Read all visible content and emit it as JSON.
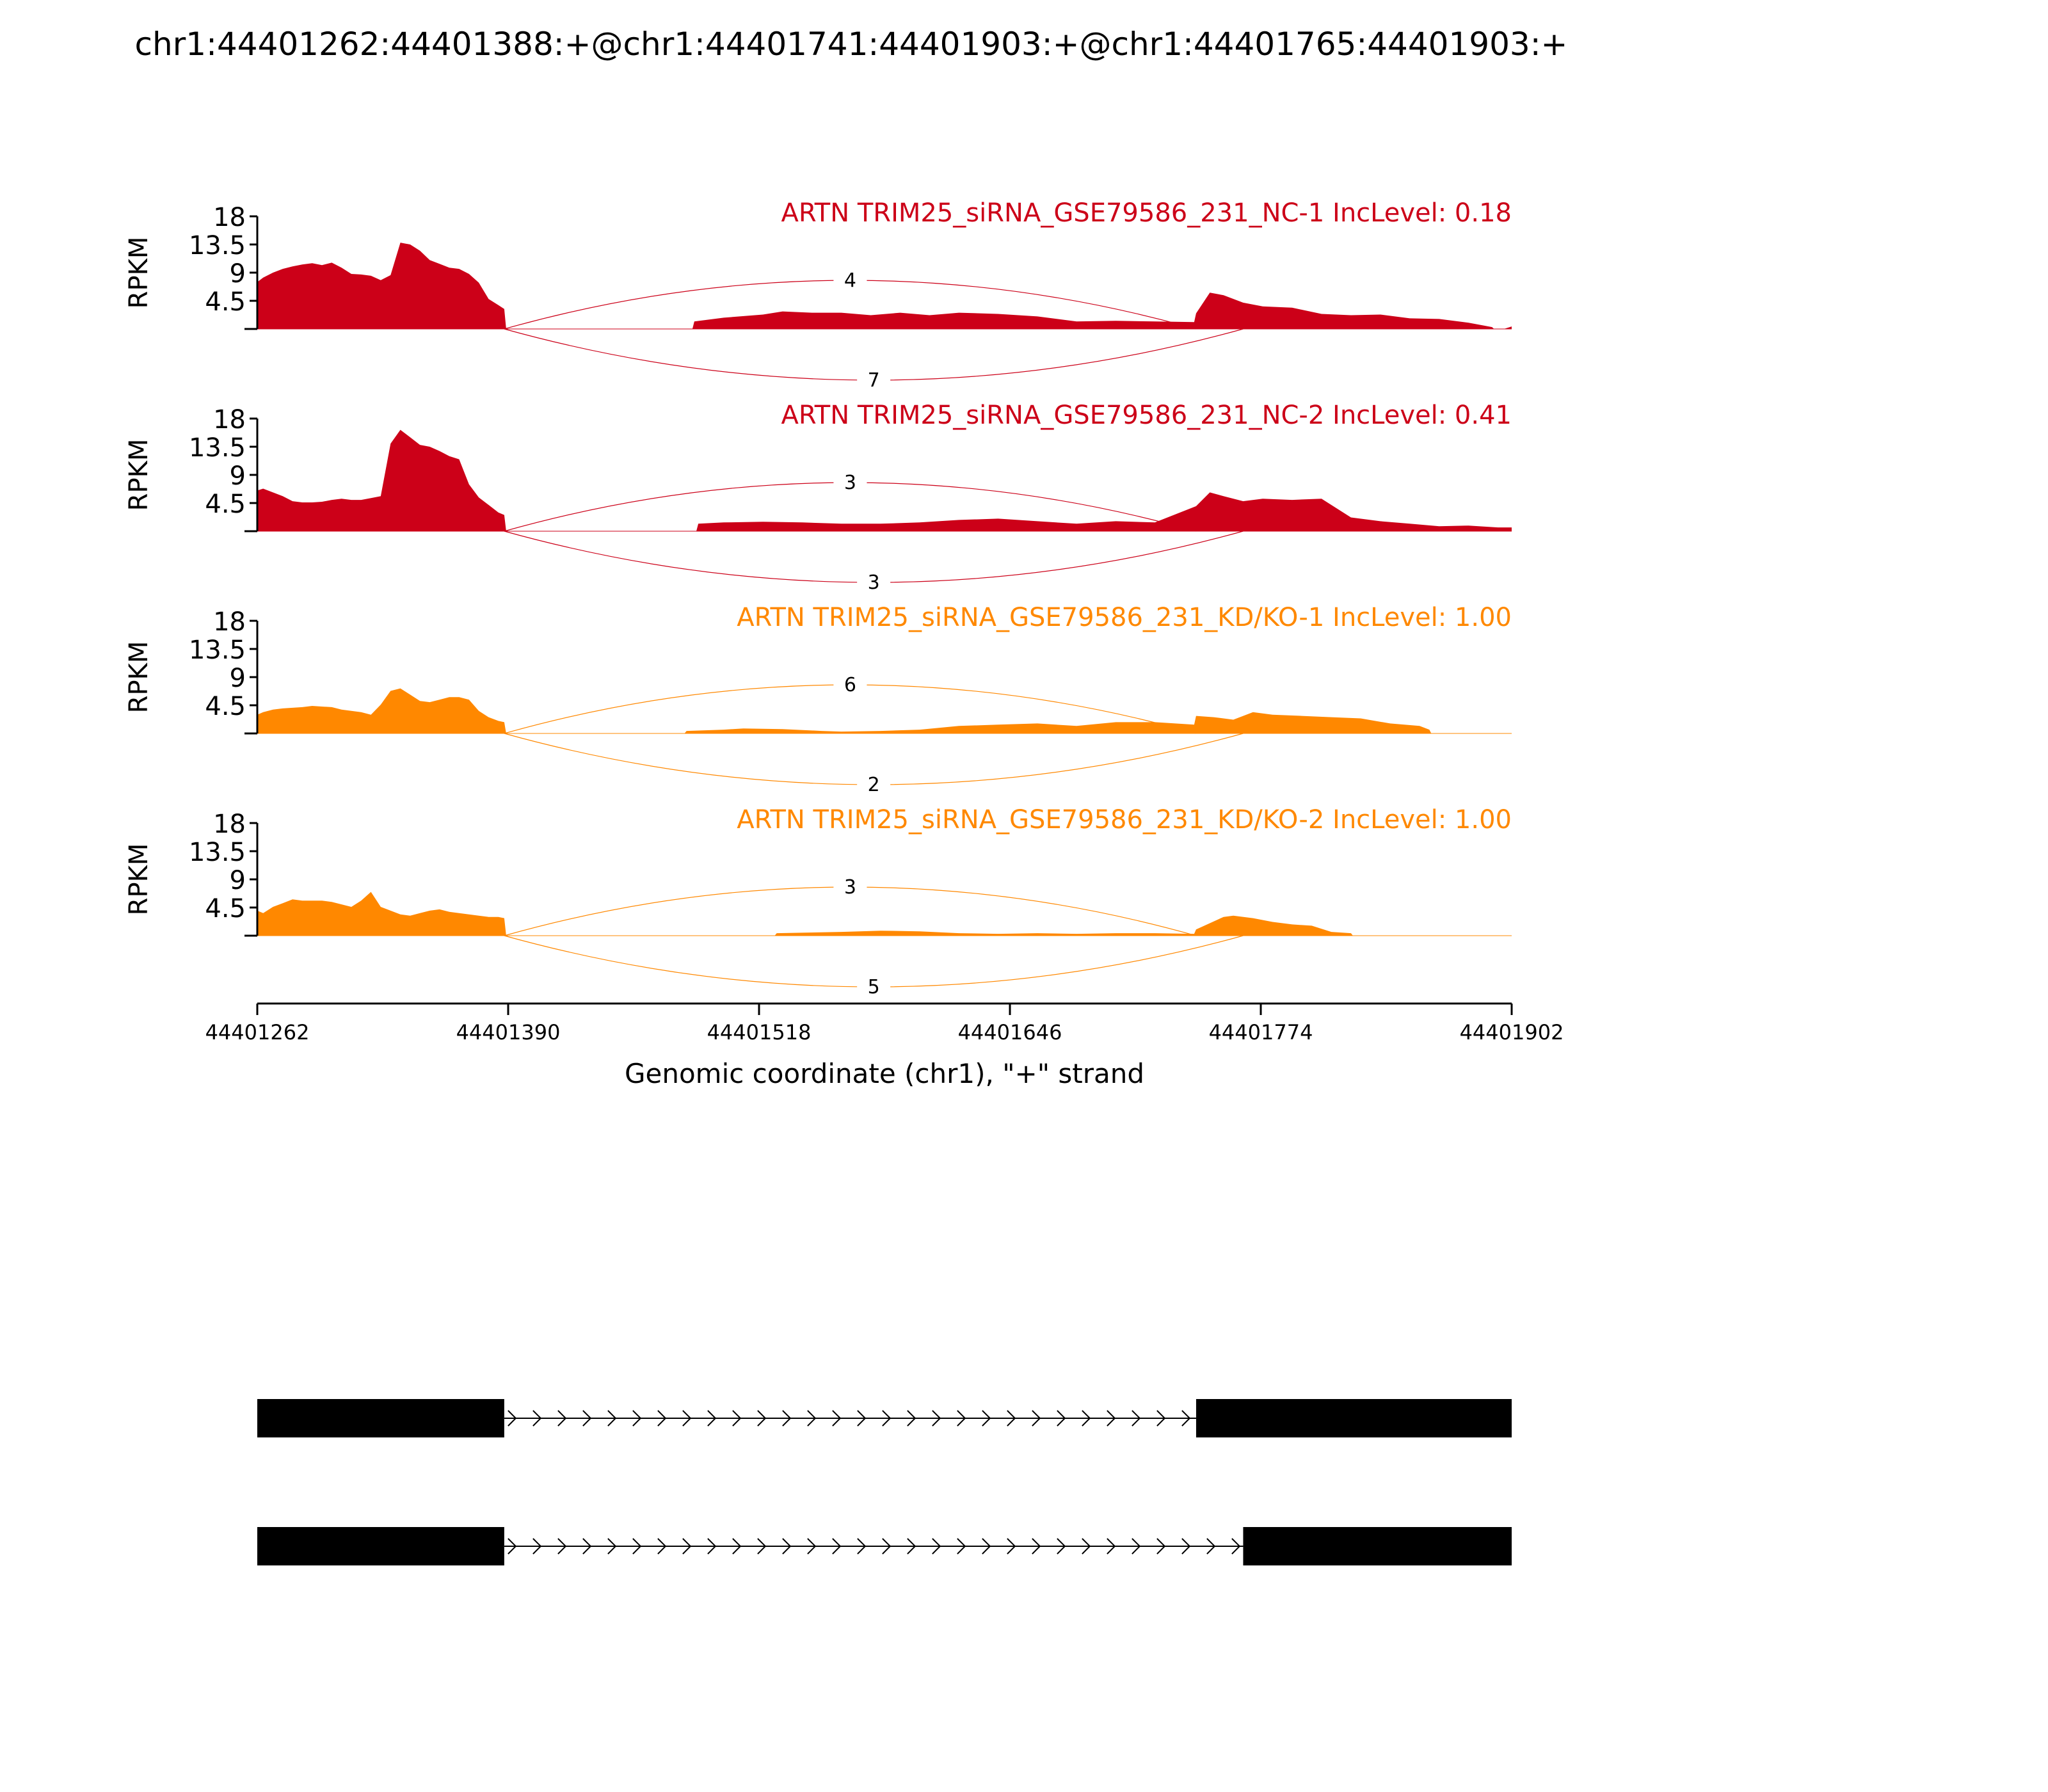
{
  "title": "chr1:44401262:44401388:+@chr1:44401741:44401903:+@chr1:44401765:44401903:+",
  "chart_data": {
    "type": "area",
    "subtype": "sashimi plot",
    "title": "chr1:44401262:44401388:+@chr1:44401741:44401903:+@chr1:44401765:44401903:+",
    "xlabel": "Genomic coordinate (chr1), \"+\" strand",
    "ylabel": "RPKM",
    "xlim": [
      44401262,
      44401902
    ],
    "x_ticks": [
      "44401262",
      "44401390",
      "44401518",
      "44401646",
      "44401774",
      "44401902"
    ],
    "ylim": [
      0,
      18
    ],
    "y_ticks": [
      "4.5",
      "9",
      "13.5",
      "18"
    ],
    "colors": {
      "NC": "#cc0018",
      "KD": "#ff8800"
    },
    "tracks": [
      {
        "label": "ARTN TRIM25_siRNA_GSE79586_231_NC-1 IncLevel: 0.18",
        "color": "#cc0018",
        "x": [
          44401262,
          44401265,
          44401270,
          44401275,
          44401280,
          44401285,
          44401290,
          44401295,
          44401300,
          44401305,
          44401310,
          44401315,
          44401320,
          44401325,
          44401330,
          44401335,
          44401340,
          44401345,
          44401350,
          44401355,
          44401360,
          44401365,
          44401370,
          44401375,
          44401380,
          44401385,
          44401388,
          44401389,
          44401484,
          44401485,
          44401500,
          44401520,
          44401530,
          44401545,
          44401560,
          44401575,
          44401590,
          44401605,
          44401620,
          44401640,
          44401660,
          44401680,
          44401700,
          44401720,
          44401740,
          44401741,
          44401748,
          44401755,
          44401765,
          44401775,
          44401790,
          44401805,
          44401820,
          44401835,
          44401850,
          44401865,
          44401880,
          44401892,
          44401893,
          44401898,
          44401902
        ],
        "y": [
          7.5,
          8.2,
          9.0,
          9.6,
          10.0,
          10.3,
          10.5,
          10.2,
          10.6,
          9.8,
          8.8,
          8.7,
          8.5,
          7.8,
          8.6,
          13.8,
          13.5,
          12.5,
          11.0,
          10.4,
          9.8,
          9.6,
          8.8,
          7.4,
          4.8,
          3.8,
          3.2,
          0.0,
          0.0,
          1.2,
          1.8,
          2.3,
          2.8,
          2.6,
          2.6,
          2.2,
          2.6,
          2.2,
          2.6,
          2.4,
          2.0,
          1.2,
          1.3,
          1.2,
          1.1,
          2.5,
          5.8,
          5.4,
          4.2,
          3.6,
          3.4,
          2.4,
          2.2,
          2.3,
          1.7,
          1.6,
          1.0,
          0.3,
          0.0,
          0.0,
          0.4
        ],
        "junctions": [
          {
            "start": 44401388,
            "end": 44401741,
            "count": "4"
          },
          {
            "start": 44401388,
            "end": 44401765,
            "count": "7"
          }
        ]
      },
      {
        "label": "ARTN TRIM25_siRNA_GSE79586_231_NC-2 IncLevel: 0.41",
        "color": "#cc0018",
        "x": [
          44401262,
          44401265,
          44401270,
          44401275,
          44401280,
          44401285,
          44401290,
          44401295,
          44401300,
          44401305,
          44401310,
          44401315,
          44401320,
          44401325,
          44401330,
          44401335,
          44401340,
          44401345,
          44401350,
          44401355,
          44401360,
          44401365,
          44401370,
          44401375,
          44401380,
          44401385,
          44401388,
          44401389,
          44401486,
          44401487,
          44401500,
          44401520,
          44401540,
          44401560,
          44401580,
          44401600,
          44401620,
          44401640,
          44401660,
          44401680,
          44401700,
          44401720,
          44401741,
          44401748,
          44401755,
          44401765,
          44401775,
          44401790,
          44401805,
          44401820,
          44401835,
          44401850,
          44401865,
          44401880,
          44401895,
          44401902
        ],
        "y": [
          6.5,
          6.8,
          6.2,
          5.6,
          4.8,
          4.6,
          4.6,
          4.7,
          5.0,
          5.2,
          5.0,
          5.0,
          5.3,
          5.6,
          14.0,
          16.2,
          15.0,
          13.8,
          13.5,
          12.8,
          12.0,
          11.5,
          7.5,
          5.4,
          4.2,
          3.0,
          2.6,
          0.0,
          0.0,
          1.2,
          1.4,
          1.5,
          1.4,
          1.2,
          1.2,
          1.4,
          1.8,
          2.0,
          1.6,
          1.2,
          1.6,
          1.4,
          4.0,
          6.2,
          5.6,
          4.8,
          5.2,
          5.0,
          5.2,
          2.2,
          1.6,
          1.2,
          0.8,
          0.9,
          0.6,
          0.6
        ],
        "junctions": [
          {
            "start": 44401388,
            "end": 44401741,
            "count": "3"
          },
          {
            "start": 44401388,
            "end": 44401765,
            "count": "3"
          }
        ]
      },
      {
        "label": "ARTN TRIM25_siRNA_GSE79586_231_KD/KO-1 IncLevel: 1.00",
        "color": "#ff8800",
        "x": [
          44401262,
          44401265,
          44401270,
          44401275,
          44401280,
          44401285,
          44401290,
          44401295,
          44401300,
          44401305,
          44401310,
          44401315,
          44401320,
          44401325,
          44401330,
          44401335,
          44401340,
          44401345,
          44401350,
          44401355,
          44401360,
          44401365,
          44401370,
          44401375,
          44401380,
          44401385,
          44401388,
          44401389,
          44401480,
          44401481,
          44401500,
          44401510,
          44401530,
          44401550,
          44401560,
          44401580,
          44401600,
          44401620,
          44401640,
          44401660,
          44401680,
          44401700,
          44401720,
          44401740,
          44401741,
          44401750,
          44401760,
          44401770,
          44401780,
          44401795,
          44401810,
          44401825,
          44401840,
          44401855,
          44401860,
          44401861,
          44401902
        ],
        "y": [
          3.0,
          3.4,
          3.8,
          4.0,
          4.1,
          4.2,
          4.4,
          4.3,
          4.2,
          3.8,
          3.6,
          3.4,
          3.0,
          4.6,
          6.8,
          7.2,
          6.2,
          5.2,
          5.0,
          5.4,
          5.8,
          5.8,
          5.4,
          3.6,
          2.6,
          2.0,
          1.8,
          0.0,
          0.0,
          0.4,
          0.6,
          0.8,
          0.7,
          0.4,
          0.3,
          0.4,
          0.6,
          1.2,
          1.4,
          1.6,
          1.2,
          1.8,
          1.8,
          1.4,
          2.8,
          2.6,
          2.2,
          3.4,
          3.0,
          2.8,
          2.6,
          2.4,
          1.6,
          1.2,
          0.6,
          0.0,
          0.0
        ],
        "junctions": [
          {
            "start": 44401388,
            "end": 44401741,
            "count": "6"
          },
          {
            "start": 44401388,
            "end": 44401765,
            "count": "2"
          }
        ]
      },
      {
        "label": "ARTN TRIM25_siRNA_GSE79586_231_KD/KO-2 IncLevel: 1.00",
        "color": "#ff8800",
        "x": [
          44401262,
          44401265,
          44401270,
          44401275,
          44401280,
          44401285,
          44401290,
          44401295,
          44401300,
          44401305,
          44401310,
          44401315,
          44401320,
          44401325,
          44401330,
          44401335,
          44401340,
          44401345,
          44401350,
          44401355,
          44401360,
          44401365,
          44401370,
          44401375,
          44401380,
          44401385,
          44401388,
          44401389,
          44401526,
          44401527,
          44401560,
          44401580,
          44401600,
          44401620,
          44401640,
          44401660,
          44401680,
          44401700,
          44401720,
          44401740,
          44401741,
          44401755,
          44401760,
          44401770,
          44401780,
          44401790,
          44401800,
          44401810,
          44401820,
          44401821,
          44401902
        ],
        "y": [
          4.0,
          3.6,
          4.6,
          5.2,
          5.8,
          5.6,
          5.6,
          5.6,
          5.4,
          5.0,
          4.6,
          5.6,
          7.0,
          4.6,
          4.0,
          3.4,
          3.2,
          3.6,
          4.0,
          4.2,
          3.8,
          3.6,
          3.4,
          3.2,
          3.0,
          3.0,
          2.8,
          0.0,
          0.0,
          0.4,
          0.6,
          0.8,
          0.7,
          0.4,
          0.3,
          0.4,
          0.3,
          0.4,
          0.4,
          0.3,
          1.0,
          3.0,
          3.2,
          2.8,
          2.2,
          1.8,
          1.6,
          0.6,
          0.4,
          0.0,
          0.0
        ],
        "junctions": [
          {
            "start": 44401388,
            "end": 44401741,
            "count": "3"
          },
          {
            "start": 44401388,
            "end": 44401765,
            "count": "5"
          }
        ]
      }
    ],
    "isoforms": [
      {
        "exons": [
          [
            44401262,
            44401388
          ],
          [
            44401741,
            44401902
          ]
        ]
      },
      {
        "exons": [
          [
            44401262,
            44401388
          ],
          [
            44401765,
            44401902
          ]
        ]
      }
    ]
  }
}
